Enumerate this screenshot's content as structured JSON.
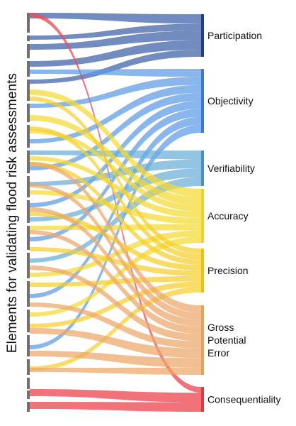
{
  "axis_title": "Elements for validating flood risk assessments",
  "targets": [
    {
      "key": "participation",
      "label": "Participation",
      "color": "#1e3f8a"
    },
    {
      "key": "objectivity",
      "label": "Objectivity",
      "color": "#3a78d8"
    },
    {
      "key": "verifiability",
      "label": "Verifiability",
      "color": "#4a90c8"
    },
    {
      "key": "accuracy",
      "label": "Accuracy",
      "color": "#f2d21a"
    },
    {
      "key": "precision",
      "label": "Precision",
      "color": "#f0c400"
    },
    {
      "key": "gross",
      "label": "Gross\nPotential\nError",
      "label_lines": [
        "Gross",
        "Potential",
        "Error"
      ],
      "color": "#e8a25c"
    },
    {
      "key": "consequentiality",
      "label": "Consequentiality",
      "color": "#e33939"
    }
  ],
  "flow_colors": {
    "participation": "#3b5fa8",
    "objectivity": "#5b9be6",
    "verifiability": "#6aaed8",
    "accuracy": "#f4d930",
    "precision": "#f5ce2a",
    "gross": "#eda66a",
    "consequentiality": "#ee4a55"
  }
}
